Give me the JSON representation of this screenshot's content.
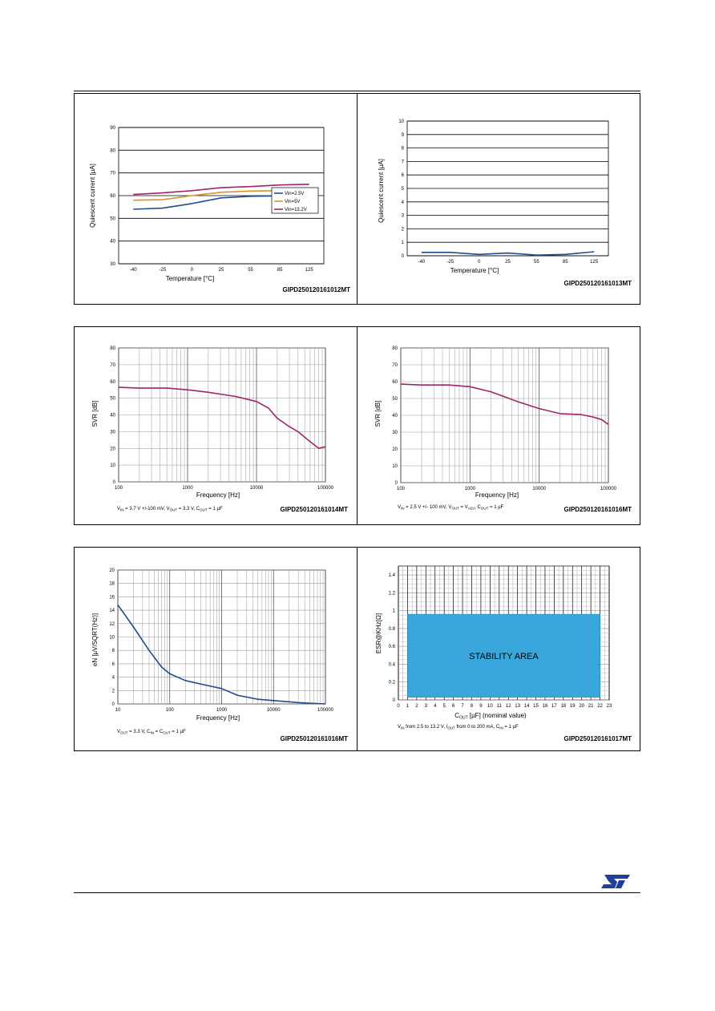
{
  "colors": {
    "blue": "#1f4e8c",
    "orange": "#d4952c",
    "magenta": "#a0246a",
    "stability": "#3aa7dc",
    "grid": "#9a9a9a",
    "logo": "#1f3f99"
  },
  "charts": [
    {
      "id": "c1",
      "code": "GIPD250120161012MT",
      "chart_data": {
        "type": "line",
        "xlabel": "Temperature [°C]",
        "ylabel": "Quiescent current [µA]",
        "x": [
          -40,
          -25,
          0,
          25,
          55,
          85,
          125
        ],
        "categories": [
          "-40",
          "-25",
          "0",
          "25",
          "55",
          "85",
          "125"
        ],
        "ylim": [
          30,
          90
        ],
        "yticks": [
          30,
          40,
          50,
          60,
          70,
          80,
          90
        ],
        "grid": "horizontal",
        "legend": "right",
        "series": [
          {
            "name": "Vin=2.5V",
            "color": "#1f4e8c",
            "values": [
              54,
              54.5,
              56.5,
              59,
              59.7,
              59.9,
              60
            ]
          },
          {
            "name": "Vin=5V",
            "color": "#d4952c",
            "values": [
              58,
              58.2,
              60,
              61.5,
              62,
              62.2,
              62.5
            ]
          },
          {
            "name": "Vin=13.2V",
            "color": "#a0246a",
            "values": [
              60.5,
              61.2,
              62.2,
              63.5,
              64,
              64.7,
              65
            ]
          }
        ]
      }
    },
    {
      "id": "c2",
      "code": "GIPD250120161013MT",
      "chart_data": {
        "type": "line",
        "xlabel": "Temperature [°C]",
        "ylabel": "Quiescent current [µA]",
        "x": [
          -40,
          -25,
          0,
          25,
          55,
          85,
          125
        ],
        "categories": [
          "-40",
          "-25",
          "0",
          "25",
          "55",
          "85",
          "125"
        ],
        "ylim": [
          0,
          10
        ],
        "yticks": [
          0,
          1,
          2,
          3,
          4,
          5,
          6,
          7,
          8,
          9,
          10
        ],
        "grid": "horizontal",
        "series": [
          {
            "name": "",
            "color": "#1f4e8c",
            "values": [
              0.25,
              0.25,
              0.1,
              0.2,
              0.05,
              0.1,
              0.3
            ]
          }
        ]
      }
    },
    {
      "id": "c3",
      "code": "GIPD250120161014MT",
      "condition": "V_IN = 3.7 V +/-100 mV, V_OUT = 3.3 V, C_OUT = 1 µF",
      "chart_data": {
        "type": "line",
        "xlabel": "Frequency [Hz]",
        "ylabel": "SVR [dB]",
        "xscale": "log",
        "xlim": [
          100,
          100000
        ],
        "xticks": [
          "100",
          "1000",
          "10000",
          "100000"
        ],
        "ylim": [
          0,
          80
        ],
        "yticks": [
          0,
          10,
          20,
          30,
          40,
          50,
          60,
          70,
          80
        ],
        "grid": "both",
        "series": [
          {
            "name": "",
            "color": "#a0246a",
            "x": [
              100,
              200,
              500,
              1000,
              2000,
              5000,
              10000,
              15000,
              20000,
              30000,
              40000,
              60000,
              80000,
              100000
            ],
            "values": [
              56.5,
              56,
              56,
              55,
              53.5,
              51,
              48,
              44,
              38,
              33,
              30,
              24,
              20,
              21
            ]
          }
        ]
      }
    },
    {
      "id": "c4",
      "code": "GIPD250120161016MT",
      "condition": "V_IN = 2.5 V +/- 100 mV, V_OUT = V_ADJ, C_OUT = 1 µF",
      "chart_data": {
        "type": "line",
        "xlabel": "Frequency [Hz]",
        "ylabel": "SVR [dB]",
        "xscale": "log",
        "xlim": [
          100,
          100000
        ],
        "xticks": [
          "100",
          "1000",
          "10000",
          "100000"
        ],
        "ylim": [
          0,
          80
        ],
        "yticks": [
          0,
          10,
          20,
          30,
          40,
          50,
          60,
          70,
          80
        ],
        "grid": "both",
        "series": [
          {
            "name": "",
            "color": "#a0246a",
            "x": [
              100,
              200,
              500,
              1000,
              2000,
              5000,
              10000,
              20000,
              40000,
              60000,
              80000,
              100000
            ],
            "values": [
              58.5,
              58,
              58,
              57,
              54,
              48,
              44,
              41,
              40.5,
              39,
              37.5,
              34.5
            ]
          }
        ]
      }
    },
    {
      "id": "c5",
      "code": "GIPD250120161016MT",
      "condition": "V_OUT = 3.3 V, C_IN = C_OUT = 1 µF",
      "chart_data": {
        "type": "line",
        "xlabel": "Frequency [Hz]",
        "ylabel": "eN [µV/SQRT(Hz)]",
        "xscale": "log",
        "xlim": [
          10,
          100000
        ],
        "xticks": [
          "10",
          "100",
          "1000",
          "10000",
          "100000"
        ],
        "ylim": [
          0,
          20
        ],
        "yticks": [
          0,
          2,
          4,
          6,
          8,
          10,
          12,
          14,
          16,
          18,
          20
        ],
        "grid": "both",
        "series": [
          {
            "name": "",
            "color": "#1f4e8c",
            "x": [
              10,
              20,
              40,
              70,
              100,
              200,
              500,
              1000,
              2000,
              5000,
              10000,
              30000,
              100000
            ],
            "values": [
              14.8,
              11.5,
              8,
              5.5,
              4.5,
              3.5,
              2.8,
              2.3,
              1.3,
              0.7,
              0.5,
              0.2,
              0
            ]
          }
        ]
      }
    },
    {
      "id": "c6",
      "code": "GIPD250120161017MT",
      "condition": "V_IN from 2.5 to 13.2 V, I_OUT from 0 to 200 mA, C_IN = 1 µF",
      "chart_data": {
        "type": "area",
        "xlabel": "C_OUT [µF] (nominal value)",
        "ylabel": "ESR@KHz[Ω]",
        "xlim": [
          0,
          23
        ],
        "xticks": [
          "0",
          "1",
          "2",
          "3",
          "4",
          "5",
          "6",
          "7",
          "8",
          "9",
          "10",
          "11",
          "12",
          "13",
          "14",
          "15",
          "16",
          "17",
          "18",
          "19",
          "20",
          "21",
          "22",
          "23"
        ],
        "ylim": [
          0,
          1.5
        ],
        "yticks": [
          "0",
          "0.2",
          "0.4",
          "0.6",
          "0.8",
          "1",
          "1.2",
          "1.4"
        ],
        "grid": "both",
        "annotation": "STABILITY AREA",
        "region": {
          "x": [
            1,
            22
          ],
          "y": [
            0.03,
            0.96
          ]
        }
      }
    }
  ]
}
